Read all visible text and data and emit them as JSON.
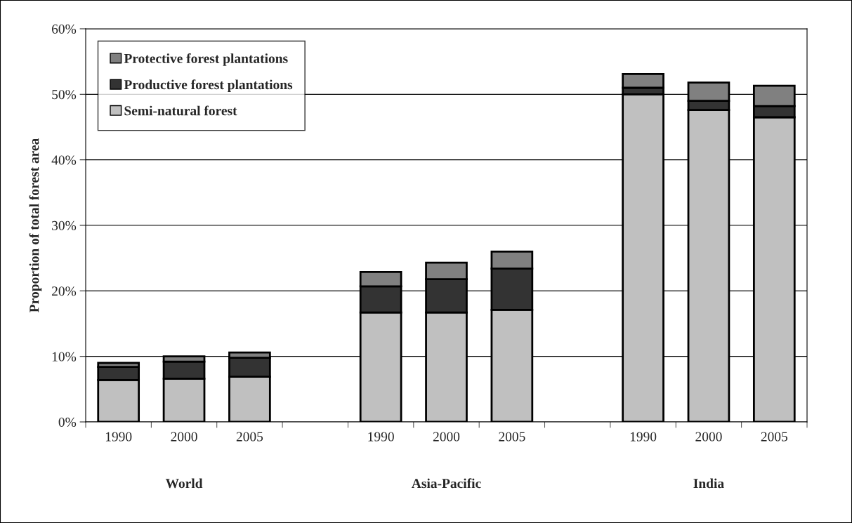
{
  "chart_data": {
    "type": "bar",
    "stacked": true,
    "ylabel": "Proportion of total forest area",
    "categories": [
      "1990",
      "2000",
      "2005",
      null,
      "1990",
      "2000",
      "2005",
      null,
      "1990",
      "2000",
      "2005"
    ],
    "series": [
      {
        "name": "Semi-natural forest",
        "color": "#c0c0c0",
        "values": [
          6.4,
          6.6,
          6.9,
          null,
          16.7,
          16.7,
          17.1,
          null,
          50.0,
          47.6,
          46.5
        ]
      },
      {
        "name": "Productive forest plantations",
        "color": "#333333",
        "values": [
          2.0,
          2.6,
          2.9,
          null,
          4.0,
          5.1,
          6.3,
          null,
          1.0,
          1.4,
          1.7
        ]
      },
      {
        "name": "Protective forest plantations",
        "color": "#808080",
        "values": [
          0.6,
          0.8,
          0.8,
          null,
          2.2,
          2.5,
          2.6,
          null,
          2.1,
          2.8,
          3.1
        ]
      }
    ],
    "ylim": [
      0,
      60
    ],
    "yticks": [
      {
        "value": 0,
        "label": "0%"
      },
      {
        "value": 10,
        "label": "10%"
      },
      {
        "value": 20,
        "label": "20%"
      },
      {
        "value": 30,
        "label": "30%"
      },
      {
        "value": 40,
        "label": "40%"
      },
      {
        "value": 50,
        "label": "50%"
      },
      {
        "value": 60,
        "label": "60%"
      }
    ],
    "grid": "y",
    "legend": "top left",
    "annotations": [
      "World",
      "Asia-Pacific",
      "India"
    ]
  }
}
